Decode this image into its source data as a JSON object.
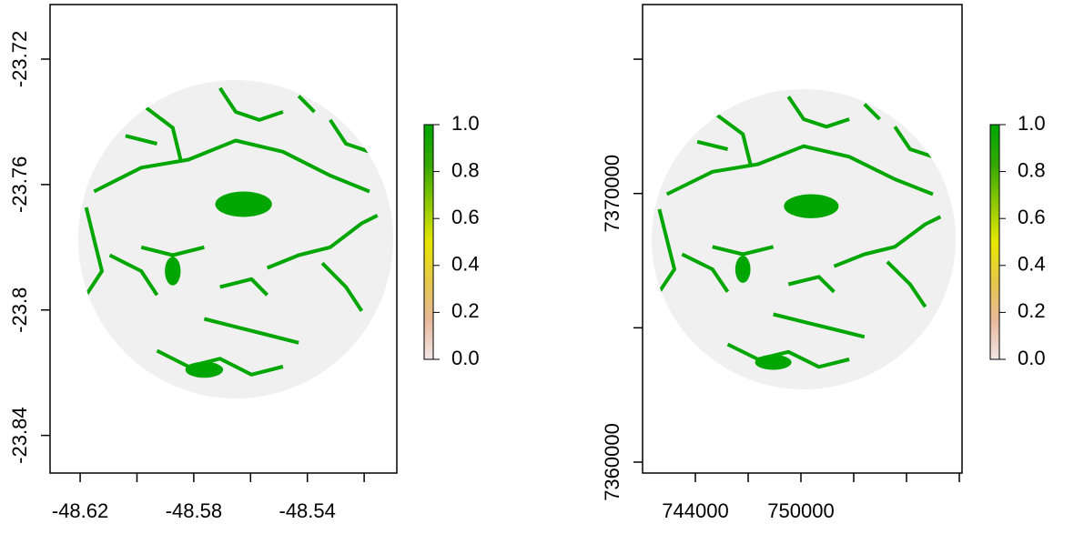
{
  "chart_data": [
    {
      "type": "raster",
      "xlim": [
        -48.6306,
        -48.5085
      ],
      "ylim": [
        -23.852,
        -23.7026
      ],
      "xticks": [
        -48.62,
        {
          "value": -48.6,
          "label": null
        },
        -48.58,
        {
          "value": -48.56,
          "label": null
        },
        -48.54,
        {
          "value": -48.52,
          "label": null
        }
      ],
      "yticks": [
        -23.72,
        -23.76,
        -23.8,
        -23.84
      ],
      "background": "#f0f0f0",
      "patch_color": "#00a600",
      "zlim": [
        0,
        1
      ],
      "zticks": [
        {
          "value": 0,
          "label": "0.0"
        },
        0.2,
        0.4,
        0.6,
        0.8,
        {
          "value": 1,
          "label": "1.0"
        }
      ],
      "colors": [
        "#f2e6e6",
        "#e8b89a",
        "#e6c84a",
        "#e6e600",
        "#8cc800",
        "#33a800",
        "#00a600"
      ]
    },
    {
      "type": "raster",
      "xlim": [
        741000,
        759155
      ],
      "ylim": [
        7359593,
        7377034
      ],
      "xticks": [
        744000,
        {
          "value": 747000,
          "label": null
        },
        750000,
        {
          "value": 753000,
          "label": null
        },
        {
          "value": 756000,
          "label": null
        },
        {
          "value": 759000,
          "label": null
        }
      ],
      "yticks": [
        7360000,
        {
          "value": 7365000,
          "label": null
        },
        7370000,
        {
          "value": 7375000,
          "label": null
        }
      ],
      "background": "#f0f0f0",
      "patch_color": "#00a600",
      "zlim": [
        0,
        1
      ],
      "zticks": [
        {
          "value": 0,
          "label": "0.0"
        },
        0.2,
        0.4,
        0.6,
        0.8,
        {
          "value": 1,
          "label": "1.0"
        }
      ],
      "colors": [
        "#f2e6e6",
        "#e8b89a",
        "#e6c84a",
        "#e6e600",
        "#8cc800",
        "#33a800",
        "#00a600"
      ]
    }
  ]
}
